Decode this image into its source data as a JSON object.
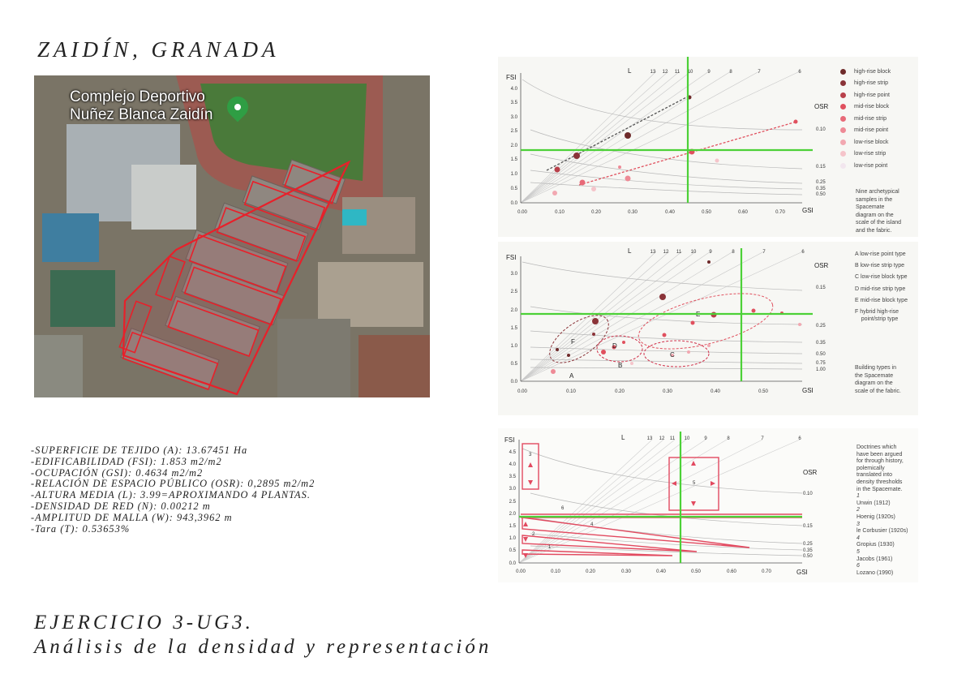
{
  "title": "ZAIDÍN, GRANADA",
  "photo": {
    "place_line1": "Complejo Deportivo",
    "place_line2": "Nuñez Blanca Zaidín",
    "pin_icon": "map-pin-icon"
  },
  "data_lines": [
    "-SUPERFICIE DE TEJIDO (A): 13.67451 Ha",
    "-EDIFICABILIDAD (FSI): 1.853 m2/m2",
    "-OCUPACIÓN (GSI): 0.4634 m2/m2",
    "-RELACIÓN DE ESPACIO PÚBLICO (OSR): 0,2895 m2/m2",
    "-ALTURA MEDIA (L): 3.99=APROXIMANDO 4 PLANTAS.",
    "-DENSIDAD DE RED (N): 0.00212 m",
    "-AMPLITUD DE MALLA (W): 943,3962 m",
    "-Tara (T): 0.53653%"
  ],
  "footer_line1": "EJERCICIO 3-UG3.",
  "footer_line2": "Análisis de la densidad y representación",
  "highlight_color": "#4cd137",
  "accent_color": "#d0304a",
  "panels": [
    {
      "fsi_label": "FSI",
      "gsi_label": "GSI",
      "l_label": "L",
      "osr_label": "OSR",
      "y_ticks": [
        "0.0",
        "0.5",
        "1.0",
        "1.5",
        "2.0",
        "2.5",
        "3.0",
        "3.5",
        "4.0"
      ],
      "x_ticks": [
        "0.00",
        "0.10",
        "0.20",
        "0.30",
        "0.40",
        "0.50",
        "0.60",
        "0.70"
      ],
      "l_ticks": [
        "13",
        "12",
        "11",
        "10",
        "9",
        "8",
        "7",
        "6"
      ],
      "osr_ticks": [
        "0.10",
        "0.15",
        "0.25",
        "0.35",
        "0.50"
      ],
      "legend": [
        {
          "label": "high-rise block",
          "color": "#6e2a2a"
        },
        {
          "label": "high-rise strip",
          "color": "#8a3338"
        },
        {
          "label": "high-rise point",
          "color": "#b8404a"
        },
        {
          "label": "mid-rise block",
          "color": "#e0505e"
        },
        {
          "label": "mid-rise strip",
          "color": "#e86a78"
        },
        {
          "label": "mid-rise point",
          "color": "#ee8a96"
        },
        {
          "label": "low-rise block",
          "color": "#f2a8b1"
        },
        {
          "label": "low-rise strip",
          "color": "#f5c4ca"
        },
        {
          "label": "low-rise point",
          "color": "#f2e6ee"
        }
      ],
      "caption": [
        "Nine archetypical",
        "samples in the",
        "Spacemate",
        "diagram on the",
        "scale of the island",
        "and the fabric."
      ]
    },
    {
      "fsi_label": "FSI",
      "gsi_label": "GSI",
      "l_label": "L",
      "osr_label": "OSR",
      "y_ticks": [
        "0.0",
        "0.5",
        "1.0",
        "1.5",
        "2.0",
        "2.5",
        "3.0"
      ],
      "x_ticks": [
        "0.00",
        "0.10",
        "0.20",
        "0.30",
        "0.40",
        "0.50"
      ],
      "l_ticks": [
        "13",
        "12",
        "11",
        "10",
        "9",
        "8",
        "7",
        "6"
      ],
      "osr_ticks": [
        "0.15",
        "0.25",
        "0.35",
        "0.50",
        "0.75",
        "1.00"
      ],
      "cluster_labels": [
        "A",
        "B",
        "C",
        "D",
        "E",
        "F"
      ],
      "legend": [
        "A  low-rise point type",
        "B  low-rise strip type",
        "C  low-rise block type",
        "D  mid-rise strip type",
        "E  mid-rise block type",
        "F  hybrid high-rise",
        "    point/strip type"
      ],
      "caption": [
        "Building types in",
        "the Spacemate",
        "diagram on the",
        "scale of the fabric."
      ]
    },
    {
      "fsi_label": "FSI",
      "gsi_label": "GSI",
      "l_label": "L",
      "osr_label": "OSR",
      "y_ticks": [
        "0.0",
        "0.5",
        "1.0",
        "1.5",
        "2.0",
        "2.5",
        "3.0",
        "3.5",
        "4.0",
        "4.5"
      ],
      "x_ticks": [
        "0.00",
        "0.10",
        "0.20",
        "0.30",
        "0.40",
        "0.50",
        "0.60",
        "0.70"
      ],
      "l_ticks": [
        "13",
        "12",
        "11",
        "10",
        "9",
        "8",
        "7",
        "6"
      ],
      "osr_ticks": [
        "0.10",
        "0.15",
        "0.25",
        "0.35",
        "0.50"
      ],
      "doctrine_numbers": [
        "1",
        "2",
        "3",
        "4",
        "5",
        "6"
      ],
      "doctrines": [
        "Doctrines which",
        "have been argued",
        "for through history,",
        "polemically",
        "translated into",
        "density thresholds",
        "in the Spacemate.",
        "1",
        "Unwin (1912)",
        "2",
        "Hoenig (1920s)",
        "3",
        "le Corbusier (1920s)",
        "4",
        "Gropius (1930)",
        "5",
        "Jacobs (1961)",
        "6",
        "Lozano (1990)"
      ]
    }
  ]
}
